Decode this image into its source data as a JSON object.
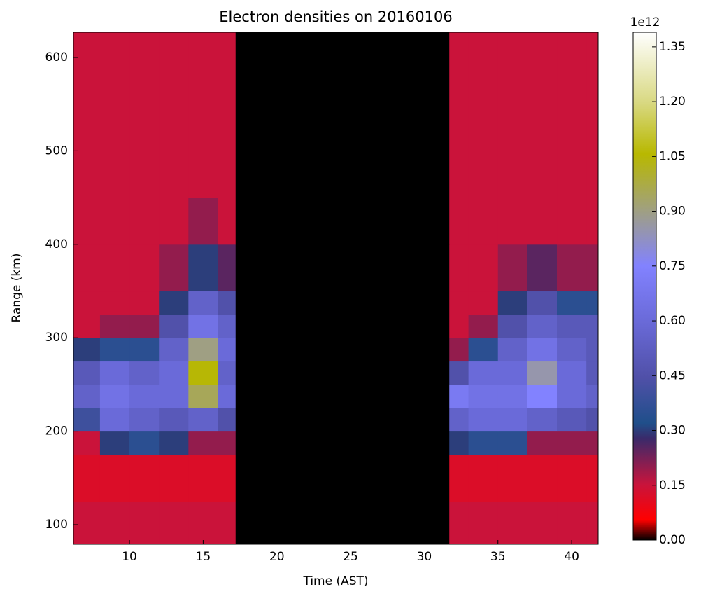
{
  "chart_data": {
    "type": "heatmap",
    "title": "Electron densities on 20160106",
    "xlabel": "Time (AST)",
    "ylabel": "Range (km)",
    "x_edges": [
      6.2,
      8,
      10,
      12,
      14,
      16,
      17.2,
      31.7,
      33,
      35,
      37,
      39,
      41,
      41.8
    ],
    "y_edges": [
      79,
      125,
      175,
      200,
      225,
      250,
      275,
      300,
      325,
      350,
      400,
      450,
      627
    ],
    "z": [
      [
        0.15,
        0.15,
        0.15,
        0.15,
        0.15,
        0.15,
        0,
        0.15,
        0.15,
        0.15,
        0.15,
        0.15,
        0.15
      ],
      [
        0.12,
        0.12,
        0.12,
        0.12,
        0.12,
        0.12,
        0,
        0.12,
        0.12,
        0.12,
        0.12,
        0.12,
        0.12
      ],
      [
        0.15,
        0.3,
        0.35,
        0.3,
        0.2,
        0.2,
        0,
        0.3,
        0.35,
        0.35,
        0.2,
        0.2,
        0.2
      ],
      [
        0.4,
        0.6,
        0.55,
        0.5,
        0.55,
        0.45,
        0,
        0.55,
        0.6,
        0.6,
        0.55,
        0.5,
        0.45
      ],
      [
        0.55,
        0.65,
        0.6,
        0.6,
        0.95,
        0.6,
        0,
        0.7,
        0.65,
        0.65,
        0.75,
        0.6,
        0.55
      ],
      [
        0.5,
        0.6,
        0.55,
        0.6,
        1.05,
        0.55,
        0,
        0.45,
        0.6,
        0.6,
        0.85,
        0.6,
        0.5
      ],
      [
        0.3,
        0.35,
        0.35,
        0.55,
        0.9,
        0.6,
        0,
        0.2,
        0.35,
        0.55,
        0.65,
        0.55,
        0.5
      ],
      [
        0.15,
        0.2,
        0.2,
        0.45,
        0.65,
        0.55,
        0,
        0.15,
        0.2,
        0.45,
        0.55,
        0.5,
        0.5
      ],
      [
        0.15,
        0.15,
        0.15,
        0.3,
        0.55,
        0.45,
        0,
        0.15,
        0.15,
        0.3,
        0.45,
        0.35,
        0.35
      ],
      [
        0.15,
        0.15,
        0.15,
        0.2,
        0.3,
        0.25,
        0,
        0.15,
        0.15,
        0.2,
        0.25,
        0.2,
        0.2
      ],
      [
        0.15,
        0.15,
        0.15,
        0.15,
        0.2,
        0.15,
        0,
        0.15,
        0.15,
        0.15,
        0.15,
        0.15,
        0.15
      ],
      [
        0.15,
        0.15,
        0.15,
        0.15,
        0.15,
        0.15,
        0,
        0.15,
        0.15,
        0.15,
        0.15,
        0.15,
        0.15
      ]
    ],
    "xlim": [
      6.2,
      41.8
    ],
    "xticks": [
      10,
      15,
      20,
      25,
      30,
      35,
      40
    ],
    "ylim": [
      79,
      627
    ],
    "yticks": [
      100,
      200,
      300,
      400,
      500,
      600
    ],
    "colorbar": {
      "offset_label": "1e12",
      "lim": [
        0,
        1.39
      ],
      "ticks": [
        {
          "value": 0,
          "label": "0.00"
        },
        {
          "value": 0.15,
          "label": "0.15"
        },
        {
          "value": 0.3,
          "label": "0.30"
        },
        {
          "value": 0.45,
          "label": "0.45"
        },
        {
          "value": 0.6,
          "label": "0.60"
        },
        {
          "value": 0.75,
          "label": "0.75"
        },
        {
          "value": 0.9,
          "label": "0.90"
        },
        {
          "value": 1.05,
          "label": "1.05"
        },
        {
          "value": 1.2,
          "label": "1.20"
        },
        {
          "value": 1.35,
          "label": "1.35"
        }
      ]
    }
  }
}
